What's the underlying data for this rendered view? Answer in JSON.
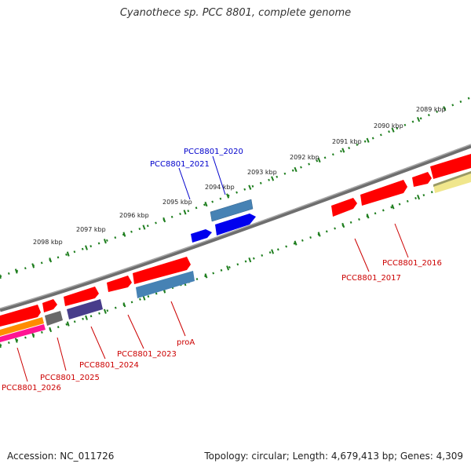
{
  "title": "Cyanothece sp. PCC 8801, complete genome",
  "footer": {
    "accession": "Accession: NC_011726",
    "summary": "Topology: circular; Length: 4,679,413 bp; Genes: 4,309"
  },
  "colors": {
    "forward_gene": "#ff0000",
    "reverse_gene": "#0000ff",
    "backbone": "#808080",
    "tick": "#1e7e1e",
    "label_forward": "#cc0000",
    "label_reverse": "#0000cc"
  },
  "kbp_ticks": [
    "2089 kbp",
    "2090 kbp",
    "2091 kbp",
    "2092 kbp",
    "2093 kbp",
    "2094 kbp",
    "2095 kbp",
    "2096 kbp",
    "2097 kbp",
    "2098 kbp"
  ],
  "gene_labels": [
    {
      "text": "PCC8801_2020",
      "color": "#0000cc"
    },
    {
      "text": "PCC8801_2021",
      "color": "#0000cc"
    },
    {
      "text": "PCC8801_2016",
      "color": "#cc0000"
    },
    {
      "text": "PCC8801_2017",
      "color": "#cc0000"
    },
    {
      "text": "proA",
      "color": "#cc0000"
    },
    {
      "text": "PCC8801_2023",
      "color": "#cc0000"
    },
    {
      "text": "PCC8801_2024",
      "color": "#cc0000"
    },
    {
      "text": "PCC8801_2025",
      "color": "#cc0000"
    },
    {
      "text": "PCC8801_2026",
      "color": "#cc0000"
    }
  ]
}
